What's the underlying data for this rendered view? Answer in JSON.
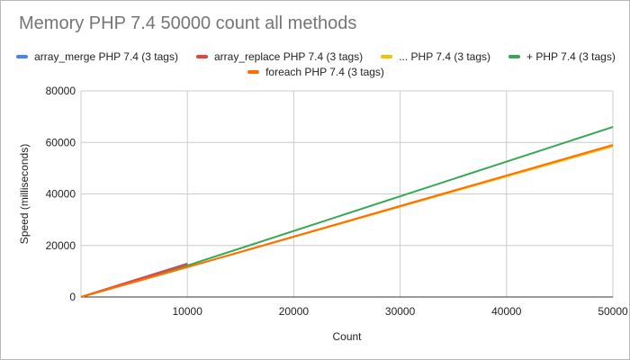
{
  "chart_data": {
    "type": "line",
    "title": "Memory PHP 7.4 50000 count all methods",
    "xlabel": "Count",
    "ylabel": "Speed (milliseconds)",
    "xlim": [
      0,
      50000
    ],
    "ylim": [
      0,
      80000
    ],
    "x_ticks": [
      10000,
      20000,
      30000,
      40000,
      50000
    ],
    "x_tick_labels": [
      "10000",
      "20000",
      "30000",
      "40000",
      "50000"
    ],
    "y_ticks": [
      0,
      20000,
      40000,
      60000,
      80000
    ],
    "y_tick_labels": [
      "0",
      "20000",
      "40000",
      "60000",
      "80000"
    ],
    "grid": true,
    "legend_position": "top",
    "series": [
      {
        "name": "array_merge PHP 7.4 (3 tags)",
        "color": "#4285f4",
        "points": [
          [
            0,
            0
          ],
          [
            10000,
            13000
          ]
        ]
      },
      {
        "name": "array_replace PHP 7.4 (3 tags)",
        "color": "#ea4335",
        "points": [
          [
            0,
            0
          ],
          [
            10000,
            12800
          ]
        ]
      },
      {
        "name": "... PHP 7.4 (3 tags)",
        "color": "#fbbc04",
        "points": [
          [
            0,
            0
          ],
          [
            10000,
            11600
          ],
          [
            50000,
            58500
          ]
        ]
      },
      {
        "name": "+ PHP 7.4 (3 tags)",
        "color": "#34a853",
        "points": [
          [
            0,
            0
          ],
          [
            10000,
            12200
          ],
          [
            50000,
            66000
          ]
        ]
      },
      {
        "name": "foreach PHP 7.4 (3 tags)",
        "color": "#ff6d01",
        "points": [
          [
            0,
            0
          ],
          [
            10000,
            11600
          ],
          [
            50000,
            59000
          ]
        ]
      }
    ]
  }
}
